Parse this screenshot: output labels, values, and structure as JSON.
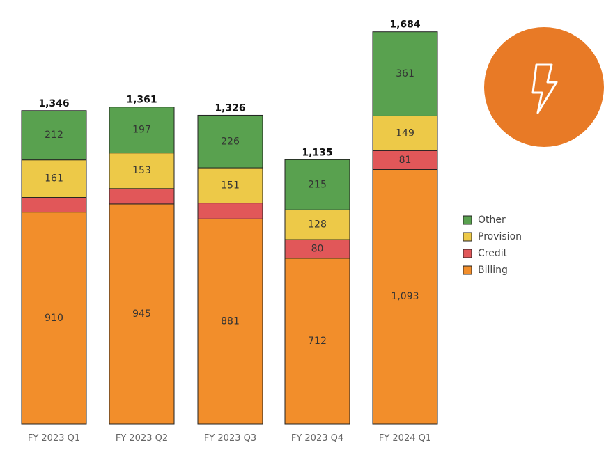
{
  "chart_data": {
    "type": "bar",
    "stacked": true,
    "categories": [
      "FY 2023 Q1",
      "FY 2023 Q2",
      "FY 2023 Q3",
      "FY 2023 Q4",
      "FY 2024 Q1"
    ],
    "series": [
      {
        "name": "Billing",
        "color": "#F28E2B",
        "values": [
          910,
          945,
          881,
          712,
          1093
        ],
        "labels": [
          "910",
          "945",
          "881",
          "712",
          "1,093"
        ]
      },
      {
        "name": "Credit",
        "color": "#E15759",
        "values": [
          63,
          66,
          68,
          80,
          81
        ],
        "labels": [
          "",
          "",
          "",
          "80",
          "81"
        ]
      },
      {
        "name": "Provision",
        "color": "#EDC948",
        "values": [
          161,
          153,
          151,
          128,
          149
        ],
        "labels": [
          "161",
          "153",
          "151",
          "128",
          "149"
        ]
      },
      {
        "name": "Other",
        "color": "#59A14F",
        "values": [
          212,
          197,
          226,
          215,
          361
        ],
        "labels": [
          "212",
          "197",
          "226",
          "215",
          "361"
        ]
      }
    ],
    "totals": [
      "1,346",
      "1,361",
      "1,326",
      "1,135",
      "1,684"
    ],
    "legend_order": [
      "Other",
      "Provision",
      "Credit",
      "Billing"
    ],
    "legend_position": "right",
    "grid": false,
    "ylim": [
      0,
      1684
    ]
  },
  "badge": {
    "icon": "lightning-icon",
    "color": "#E87A26"
  }
}
